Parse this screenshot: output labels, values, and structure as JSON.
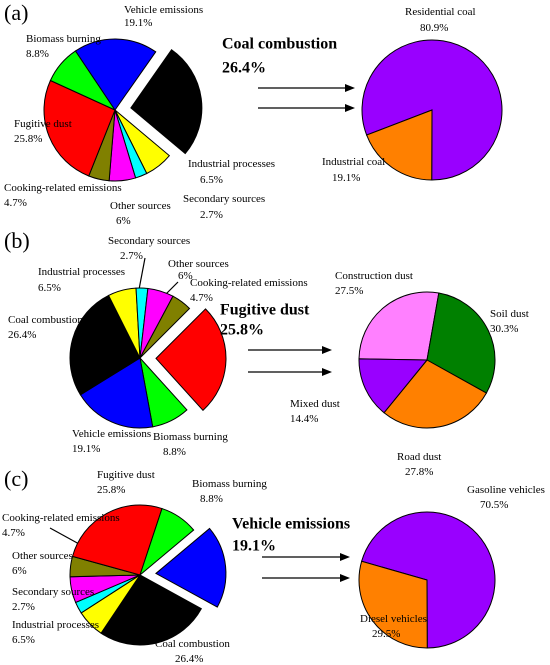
{
  "chart_data": [
    {
      "type": "pie",
      "panel": "(a)",
      "categories": [
        "Coal combustion",
        "Industrial processes",
        "Secondary sources",
        "Other sources",
        "Cooking-related emissions",
        "Fugitive dust",
        "Biomass burning",
        "Vehicle emissions"
      ],
      "values": [
        26.4,
        6.5,
        2.7,
        6,
        4.7,
        25.8,
        8.8,
        19.1
      ],
      "value_labels": [
        "26.4%",
        "6.5%",
        "2.7%",
        "6%",
        "4.7%",
        "25.8%",
        "8.8%",
        "19.1%"
      ],
      "colors": [
        "#000000",
        "#ffff00",
        "#00ffff",
        "#ff00ff",
        "#808000",
        "#ff0000",
        "#00ff00",
        "#0000ff"
      ],
      "explode": "Coal combustion"
    },
    {
      "type": "pie",
      "categories": [
        "Residential coal",
        "Industrial coal"
      ],
      "values": [
        80.9,
        19.1
      ],
      "value_labels": [
        "80.9%",
        "19.1%"
      ],
      "colors": [
        "#9900ff",
        "#ff8000"
      ]
    },
    {
      "type": "pie",
      "panel": "(b)",
      "categories": [
        "Coal combustion",
        "Industrial processes",
        "Secondary sources",
        "Other sources",
        "Cooking-related emissions",
        "Fugitive dust",
        "Biomass burning",
        "Vehicle emissions"
      ],
      "values": [
        26.4,
        6.5,
        2.7,
        6,
        4.7,
        25.8,
        8.8,
        19.1
      ],
      "value_labels": [
        "26.4%",
        "6.5%",
        "2.7%",
        "6%",
        "4.7%",
        "25.8%",
        "8.8%",
        "19.1%"
      ],
      "colors": [
        "#000000",
        "#ffff00",
        "#00ffff",
        "#ff00ff",
        "#808000",
        "#ff0000",
        "#00ff00",
        "#0000ff"
      ],
      "explode": "Fugitive dust"
    },
    {
      "type": "pie",
      "categories": [
        "Construction dust",
        "Soil dust",
        "Road dust",
        "Mixed dust"
      ],
      "values": [
        27.5,
        30.3,
        27.8,
        14.4
      ],
      "value_labels": [
        "27.5%",
        "30.3%",
        "27.8%",
        "14.4%"
      ],
      "colors": [
        "#ff80ff",
        "#008000",
        "#ff8000",
        "#9900ff"
      ]
    },
    {
      "type": "pie",
      "panel": "(c)",
      "categories": [
        "Coal combustion",
        "Industrial processes",
        "Secondary sources",
        "Other sources",
        "Cooking-related emissions",
        "Fugitive dust",
        "Biomass burning",
        "Vehicle emissions"
      ],
      "values": [
        26.4,
        6.5,
        2.7,
        6,
        4.7,
        25.8,
        8.8,
        19.1
      ],
      "value_labels": [
        "26.4%",
        "6.5%",
        "2.7%",
        "6%",
        "4.7%",
        "25.8%",
        "8.8%",
        "19.1%"
      ],
      "colors": [
        "#000000",
        "#ffff00",
        "#00ffff",
        "#ff00ff",
        "#808000",
        "#ff0000",
        "#00ff00",
        "#0000ff"
      ],
      "explode": "Vehicle emissions"
    },
    {
      "type": "pie",
      "categories": [
        "Gasoline vehicles",
        "Diesel vehicles"
      ],
      "values": [
        70.5,
        29.5
      ],
      "value_labels": [
        "70.5%",
        "29.5%"
      ],
      "colors": [
        "#9900ff",
        "#ff8000"
      ]
    }
  ]
}
